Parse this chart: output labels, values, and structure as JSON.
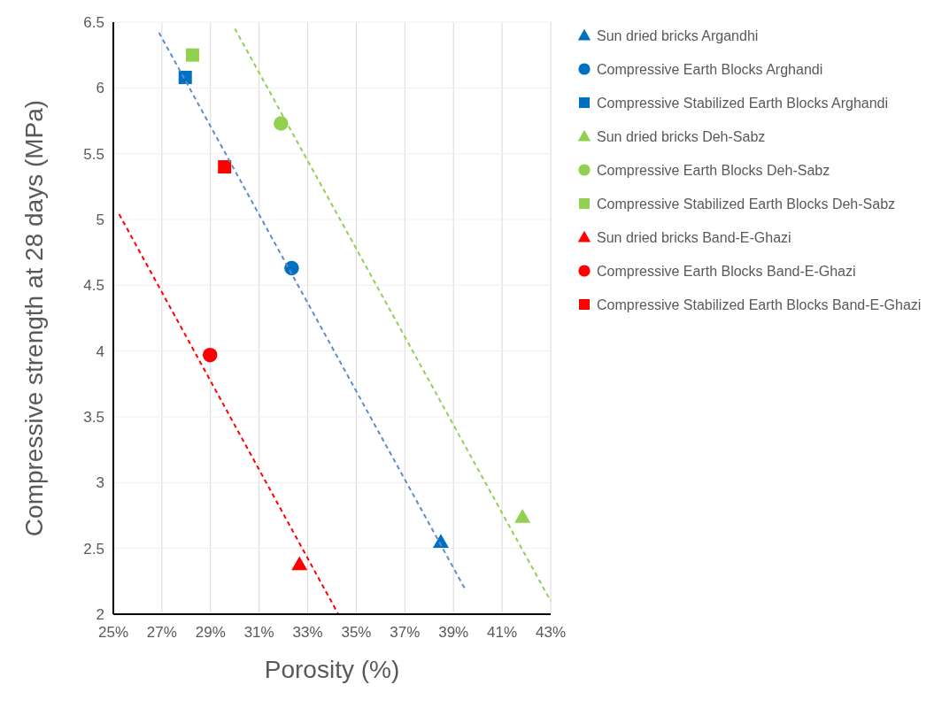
{
  "chart_data": {
    "type": "scatter",
    "xlabel": "Porosity (%)",
    "ylabel": "Compressive strength at 28 days (MPa)",
    "xlim": [
      25,
      43
    ],
    "xticks": [
      {
        "value": 25,
        "label": "25%"
      },
      {
        "value": 27,
        "label": "27%"
      },
      {
        "value": 29,
        "label": "29%"
      },
      {
        "value": 31,
        "label": "31%"
      },
      {
        "value": 33,
        "label": "33%"
      },
      {
        "value": 35,
        "label": "35%"
      },
      {
        "value": 37,
        "label": "37%"
      },
      {
        "value": 39,
        "label": "39%"
      },
      {
        "value": 41,
        "label": "41%"
      },
      {
        "value": 43,
        "label": "43%"
      }
    ],
    "ylim": [
      2,
      6.5
    ],
    "yticks": [
      2,
      2.5,
      3,
      3.5,
      4,
      4.5,
      5,
      5.5,
      6,
      6.5
    ],
    "grid": true,
    "legend": "right",
    "series": [
      {
        "name": "Sun dried bricks Argandhi",
        "color": "#0070c0",
        "marker": "triangle",
        "x": [
          38.48
        ],
        "values": [
          2.55
        ]
      },
      {
        "name": "Compressive Earth Blocks Arghandi",
        "color": "#0070c0",
        "marker": "circle",
        "x": [
          32.34
        ],
        "values": [
          4.63
        ]
      },
      {
        "name": "Compressive Stabilized Earth Blocks Arghandi",
        "color": "#0070c0",
        "marker": "square",
        "x": [
          27.96
        ],
        "values": [
          6.08
        ]
      },
      {
        "name": "Sun dried bricks Deh-Sabz",
        "color": "#92d050",
        "marker": "triangle",
        "x": [
          41.84
        ],
        "values": [
          2.74
        ]
      },
      {
        "name": "Compressive Earth Blocks Deh-Sabz",
        "color": "#92d050",
        "marker": "circle",
        "x": [
          31.9
        ],
        "values": [
          5.73
        ]
      },
      {
        "name": "Compressive Stabilized Earth Blocks Deh-Sabz",
        "color": "#92d050",
        "marker": "square",
        "x": [
          28.26
        ],
        "values": [
          6.25
        ]
      },
      {
        "name": "Sun dried bricks Band-E-Ghazi",
        "color": "#ff0000",
        "marker": "triangle",
        "x": [
          32.66
        ],
        "values": [
          2.38
        ]
      },
      {
        "name": "Compressive Earth Blocks Band-E-Ghazi",
        "color": "#ff0000",
        "marker": "circle",
        "x": [
          28.98
        ],
        "values": [
          3.97
        ]
      },
      {
        "name": "Compressive Stabilized Earth Blocks Band-E-Ghazi",
        "color": "#ff0000",
        "marker": "square",
        "x": [
          29.58
        ],
        "values": [
          5.4
        ]
      },
      {
        "type": "line",
        "color": "#5b8bd0",
        "line_style": "dashed",
        "marker": "none",
        "x": [
          26.88,
          39.48
        ],
        "values": [
          6.42,
          2.19
        ]
      },
      {
        "type": "line",
        "color": "#92d050",
        "line_style": "dashed",
        "marker": "none",
        "x": [
          30.0,
          43.0
        ],
        "values": [
          6.45,
          2.1
        ]
      },
      {
        "type": "line",
        "color": "#ff0000",
        "line_style": "dashed",
        "marker": "none",
        "x": [
          25.24,
          34.26
        ],
        "values": [
          5.04,
          2.0
        ]
      }
    ]
  }
}
